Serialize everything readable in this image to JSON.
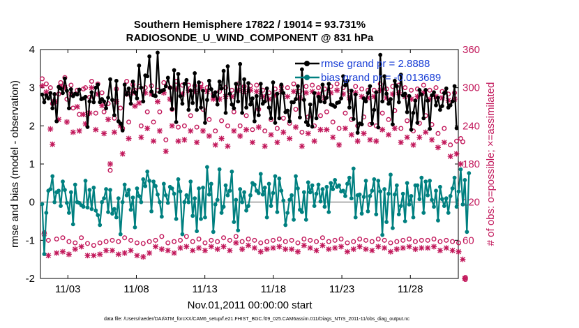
{
  "chart_data": {
    "type": "line",
    "title": "Southern Hemisphere 17822 / 19014 = 93.731%",
    "subtitle": "RADIOSONDE_U_WIND_COMPONENT @ 831 hPa",
    "xlabel": "Nov.01,2011 00:00:00 start",
    "ylabel": "rmse and bias (model - observation)",
    "ylabel_right": "# of obs: o=possible; ×=assimilated",
    "xlim": [
      1,
      31.5
    ],
    "ylim": [
      -2,
      4
    ],
    "ylim_right": [
      0,
      360
    ],
    "x_ticks": [
      3,
      8,
      13,
      18,
      23,
      28
    ],
    "x_tick_labels": [
      "11/03",
      "11/08",
      "11/13",
      "11/18",
      "11/23",
      "11/28"
    ],
    "y_ticks": [
      -2,
      -1,
      0,
      1,
      2,
      3,
      4
    ],
    "y_tick_labels": [
      "-2",
      "-1",
      "0",
      "1",
      "2",
      "3",
      "4"
    ],
    "y_ticks_right": [
      0,
      60,
      120,
      180,
      240,
      300,
      360
    ],
    "y_tick_labels_right": [
      "0",
      "60",
      "120",
      "180",
      "240",
      "300",
      "360"
    ],
    "zero_line": 0,
    "legend_position": "top-right",
    "legend": [
      "rmse grand pr = 2.8888",
      "bias grand pr = -0.013689"
    ],
    "colors": {
      "rmse": "#000000",
      "bias": "#008080",
      "counts": "#c2185b",
      "legend_text": "#1a3fd6",
      "zero": "#b0b0b0"
    },
    "series": [
      {
        "name": "rmse",
        "axis": "left",
        "values": [
          2.82,
          2.62,
          2.8,
          2.72,
          2.86,
          2.46,
          2.83,
          2.12,
          3.02,
          2.98,
          2.86,
          3.24,
          2.92,
          2.46,
          2.96,
          2.78,
          2.84,
          2.82,
          2.95,
          2.7,
          2.72,
          2.76,
          1.97,
          2.64,
          2.88,
          2.62,
          3.0,
          3.08,
          2.62,
          2.7,
          2.64,
          2.46,
          2.74,
          3.22,
          2.68,
          2.28,
          3.18,
          2.12,
          2.06,
          1.88,
          3.08,
          2.82,
          2.98,
          2.58,
          3.16,
          2.88,
          2.72,
          3.58,
          3.0,
          2.64,
          3.32,
          3.3,
          3.82,
          2.9,
          2.8,
          2.78,
          3.92,
          2.88,
          2.92,
          2.94,
          3.04,
          3.26,
          3.0,
          2.44,
          3.46,
          2.1,
          3.36,
          2.78,
          2.58,
          3.1,
          3.2,
          2.42,
          2.92,
          2.6,
          3.38,
          2.42,
          3.14,
          2.48,
          2.92,
          2.08,
          2.68,
          3.18,
          2.96,
          2.78,
          2.88,
          2.56,
          3.16,
          2.98,
          3.44,
          2.34,
          3.56,
          2.84,
          2.56,
          2.46,
          3.1,
          2.64,
          3.62,
          2.34,
          3.22,
          2.48,
          3.12,
          2.56,
          2.72,
          2.12,
          2.78,
          2.28,
          3.1,
          2.58,
          2.64,
          2.98,
          2.48,
          2.2,
          3.14,
          2.08,
          2.84,
          2.2,
          3.08,
          2.86,
          2.36,
          2.4,
          2.12,
          2.62,
          2.62,
          2.7,
          3.04,
          2.22,
          3.48,
          2.68,
          2.1,
          2.02,
          2.56,
          1.98,
          2.86,
          2.2,
          2.76,
          2.64,
          3.08,
          2.62,
          2.74,
          3.1,
          2.56,
          2.54,
          2.5,
          2.6,
          2.62,
          2.72,
          3.3,
          3.06,
          3.18,
          2.48,
          2.92,
          2.18,
          2.82,
          1.82,
          2.06,
          2.04,
          2.72,
          2.64,
          2.86,
          3.04,
          2.06,
          2.42,
          2.88,
          1.96,
          3.86,
          2.64,
          3.3,
          2.84,
          2.58,
          2.7,
          2.04,
          3.18,
          3.04,
          2.62,
          3.34,
          2.8,
          2.84,
          2.36,
          2.78,
          1.9,
          2.34,
          2.66,
          2.08,
          2.94,
          2.82,
          2.2,
          2.94,
          2.66,
          1.92,
          2.8,
          2.88,
          2.54,
          2.74,
          2.42,
          2.52,
          2.86,
          2.98,
          2.48,
          2.54,
          2.64,
          3.04,
          1.94
        ]
      },
      {
        "name": "bias",
        "axis": "left",
        "values": [
          -0.05,
          -1.36,
          -0.28,
          0.3,
          0.34,
          0.68,
          0.0,
          0.26,
          0.3,
          -0.1,
          0.54,
          0.32,
          -0.02,
          -0.28,
          0.26,
          -0.58,
          0.46,
          0.0,
          -0.02,
          -0.08,
          -0.12,
          0.56,
          -0.14,
          0.32,
          -0.18,
          0.38,
          -0.22,
          -0.34,
          -0.6,
          0.0,
          0.1,
          0.34,
          -0.26,
          0.32,
          -0.3,
          -0.18,
          -0.4,
          0.1,
          -0.84,
          0.0,
          0.46,
          0.18,
          0.32,
          -0.2,
          0.12,
          -0.66,
          0.36,
          0.16,
          0.0,
          0.6,
          0.42,
          0.8,
          0.56,
          -0.24,
          0.54,
          0.42,
          0.2,
          0.0,
          -0.38,
          0.48,
          0.18,
          -0.02,
          0.4,
          0.36,
          0.22,
          -0.44,
          0.6,
          0.28,
          -0.84,
          0.0,
          0.18,
          0.0,
          0.54,
          -0.36,
          0.1,
          -0.76,
          0.36,
          -0.44,
          0.38,
          -0.4,
          0.92,
          0.2,
          0.48,
          -0.78,
          -0.06,
          0.06,
          0.86,
          -0.28,
          -0.12,
          0.44,
          0.18,
          0.3,
          0.8,
          -0.52,
          0.06,
          -0.74,
          0.34,
          0.0,
          0.26,
          -0.22,
          -0.1,
          0.18,
          0.5,
          0.46,
          0.3,
          0.24,
          0.74,
          0.2,
          0.38,
          -0.4,
          0.48,
          -0.1,
          0.24,
          0.68,
          -0.26,
          0.62,
          0.3,
          0.04,
          -0.6,
          -0.28,
          0.06,
          0.18,
          -0.46,
          0.68,
          0.36,
          -0.2,
          -0.26,
          0.26,
          -0.46,
          0.52,
          0.26,
          0.44,
          -0.1,
          0.22,
          0.46,
          0.02,
          0.34,
          -0.12,
          0.4,
          -0.26,
          0.5,
          0.34,
          0.58,
          0.4,
          0.44,
          0.28,
          0.3,
          0.16,
          0.48,
          0.64,
          0.1,
          0.88,
          -0.4,
          0.18,
          0.2,
          -0.3,
          0.14,
          0.56,
          -0.24,
          0.16,
          0.3,
          0.6,
          -0.32,
          0.56,
          0.28,
          -0.86,
          0.34,
          -0.52,
          0.22,
          0.72,
          -0.68,
          0.2,
          0.44,
          -0.32,
          -0.1,
          0.22,
          -0.5,
          0.5,
          -0.06,
          0.16,
          -0.4,
          0.44,
          0.44,
          0.08,
          0.64,
          -0.28,
          0.54,
          0.18,
          0.56,
          0.06,
          -0.12,
          0.3,
          -0.48,
          0.4,
          0.08,
          -0.1,
          0.1,
          -0.28,
          0.16,
          0.36,
          0.64,
          -0.12,
          0.28,
          0.86,
          -0.06,
          0.58,
          -0.78,
          0.76
        ]
      },
      {
        "name": "obs possible",
        "axis": "right",
        "values": [
          314,
          72,
          306,
          60,
          300,
          275,
          278,
          62,
          290,
          308,
          64,
          316,
          282,
          58,
          304,
          268,
          56,
          296,
          258,
          64,
          298,
          300,
          55,
          285,
          310,
          52,
          260,
          306,
          56,
          292,
          262,
          58,
          275,
          170,
          60,
          252,
          298,
          58,
          268,
          236,
          64,
          310,
          246,
          60,
          305,
          296,
          56,
          302,
          240,
          55,
          300,
          262,
          58,
          303,
          246,
          60,
          296,
          262,
          66,
          308,
          218,
          56,
          300,
          266,
          58,
          310,
          238,
          60,
          304,
          240,
          66,
          304,
          256,
          58,
          303,
          238,
          62,
          306,
          266,
          56,
          300,
          250,
          60,
          290,
          232,
          58,
          294,
          248,
          64,
          300,
          240,
          60,
          296,
          262,
          66,
          306,
          240,
          58,
          302,
          256,
          62,
          303,
          234,
          60,
          304,
          266,
          56,
          296,
          232,
          58,
          292,
          250,
          60,
          298,
          236,
          62,
          302,
          252,
          58,
          300,
          244,
          60,
          306,
          266,
          56,
          294,
          230,
          62,
          302,
          254,
          60,
          304,
          240,
          58,
          300,
          256,
          64,
          298,
          262,
          58,
          302,
          246,
          60,
          306,
          236,
          62,
          300,
          260,
          56,
          294,
          250,
          58,
          302,
          240,
          62,
          298,
          254,
          60,
          296,
          242,
          58,
          296,
          240,
          62,
          306,
          260,
          60,
          298,
          250,
          56,
          302,
          264,
          58,
          304,
          236,
          60,
          300,
          248,
          62,
          296,
          232,
          58,
          298,
          244,
          60,
          304,
          256,
          60,
          296,
          242,
          62,
          300,
          228,
          58,
          294,
          236,
          60,
          290,
          210,
          58,
          292,
          216,
          56,
          220,
          215,
          0
        ]
      },
      {
        "name": "obs assimilated",
        "axis": "right",
        "values": [
          303,
          70,
          293,
          36,
          235,
          211,
          278,
          40,
          250,
          302,
          42,
          300,
          246,
          38,
          290,
          230,
          46,
          270,
          232,
          50,
          258,
          243,
          36,
          260,
          300,
          36,
          234,
          290,
          38,
          272,
          228,
          44,
          250,
          180,
          44,
          230,
          278,
          38,
          240,
          196,
          40,
          290,
          220,
          44,
          292,
          271,
          36,
          276,
          222,
          34,
          292,
          236,
          40,
          290,
          216,
          50,
          278,
          232,
          46,
          292,
          200,
          44,
          282,
          240,
          40,
          298,
          216,
          48,
          290,
          218,
          50,
          296,
          232,
          44,
          294,
          214,
          48,
          300,
          232,
          44,
          294,
          224,
          50,
          282,
          210,
          46,
          282,
          220,
          50,
          286,
          208,
          44,
          286,
          232,
          56,
          296,
          224,
          46,
          294,
          234,
          52,
          296,
          214,
          48,
          294,
          238,
          42,
          286,
          208,
          46,
          282,
          226,
          48,
          288,
          214,
          50,
          294,
          230,
          46,
          286,
          220,
          46,
          294,
          238,
          42,
          284,
          208,
          52,
          292,
          228,
          48,
          294,
          216,
          44,
          290,
          234,
          52,
          284,
          234,
          46,
          292,
          222,
          48,
          296,
          210,
          50,
          290,
          236,
          42,
          284,
          226,
          46,
          292,
          216,
          50,
          286,
          228,
          46,
          284,
          218,
          44,
          286,
          216,
          50,
          296,
          234,
          48,
          284,
          226,
          42,
          290,
          236,
          46,
          292,
          214,
          48,
          286,
          222,
          50,
          282,
          210,
          46,
          286,
          222,
          48,
          292,
          230,
          48,
          282,
          218,
          50,
          286,
          206,
          44,
          284,
          214,
          48,
          280,
          192,
          44,
          282,
          196,
          42,
          180,
          30,
          0
        ]
      }
    ]
  },
  "footer": "data file: /Users/raeder/DAI/ATM_forcXX/CAM6_setup/f.e21.FHIST_BGC.f09_025.CAM6assim.011/Diags_NTrS_2011-11/obs_diag_output.nc"
}
